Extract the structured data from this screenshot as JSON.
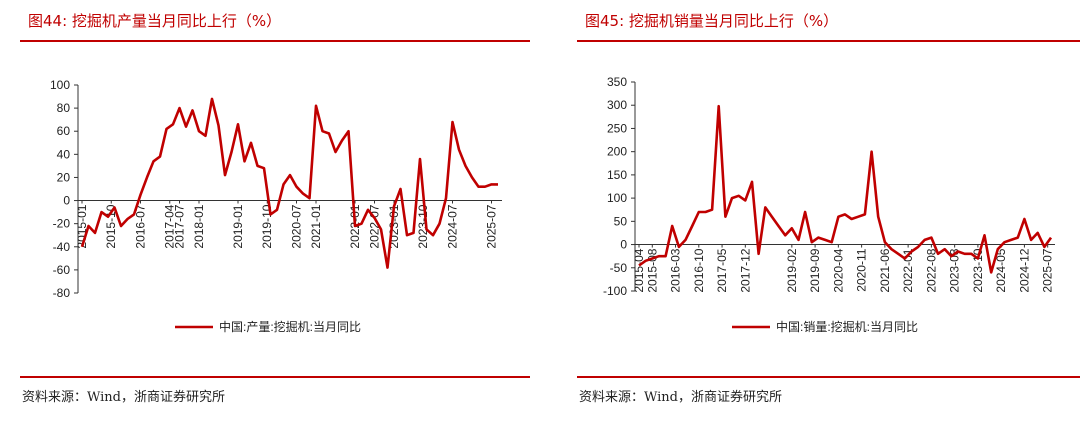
{
  "panels": [
    {
      "title": "图44:  挖掘机产量当月同比上行（%）",
      "source": "资料来源：Wind，浙商证券研究所"
    },
    {
      "title": "图45:  挖掘机销量当月同比上行（%）",
      "source": "资料来源：Wind，浙商证券研究所"
    }
  ],
  "chart_data": [
    {
      "type": "line",
      "title": "",
      "xlabel": "",
      "ylabel": "",
      "ylim": [
        -80,
        100
      ],
      "yticks": [
        100,
        80,
        60,
        40,
        20,
        0,
        -20,
        -40,
        -60,
        -80
      ],
      "xtick_labels": [
        "2015-01",
        "2015-10",
        "2016-07",
        "2017-04",
        "2017-07",
        "2018-01",
        "2019-01",
        "2019-10",
        "2020-07",
        "2021-01",
        "2022-01",
        "2022-07",
        "2023-01",
        "2023-10",
        "2024-07",
        "2025-07"
      ],
      "legend_position": "bottom",
      "grid": false,
      "line_color": "#c00000",
      "series": [
        {
          "name": "中国:产量:挖掘机:当月同比",
          "x": [
            "2015-01",
            "2015-03",
            "2015-05",
            "2015-07",
            "2015-09",
            "2015-11",
            "2016-01",
            "2016-03",
            "2016-05",
            "2016-07",
            "2016-09",
            "2016-11",
            "2017-01",
            "2017-03",
            "2017-05",
            "2017-07",
            "2017-09",
            "2017-11",
            "2018-01",
            "2018-03",
            "2018-05",
            "2018-07",
            "2018-09",
            "2018-11",
            "2019-01",
            "2019-03",
            "2019-05",
            "2019-07",
            "2019-09",
            "2019-11",
            "2020-01",
            "2020-03",
            "2020-05",
            "2020-07",
            "2020-09",
            "2020-11",
            "2021-01",
            "2021-03",
            "2021-05",
            "2021-07",
            "2021-09",
            "2021-11",
            "2022-01",
            "2022-03",
            "2022-05",
            "2022-07",
            "2022-09",
            "2022-11",
            "2023-01",
            "2023-03",
            "2023-05",
            "2023-07",
            "2023-09",
            "2023-11",
            "2024-01",
            "2024-03",
            "2024-05",
            "2024-07",
            "2024-09",
            "2024-11",
            "2025-01",
            "2025-03",
            "2025-05",
            "2025-07",
            "2025-09"
          ],
          "values": [
            -40,
            -22,
            -28,
            -10,
            -14,
            -6,
            -22,
            -16,
            -12,
            5,
            20,
            34,
            38,
            62,
            66,
            80,
            64,
            78,
            60,
            56,
            88,
            65,
            22,
            42,
            66,
            34,
            50,
            30,
            28,
            -12,
            -8,
            14,
            22,
            12,
            6,
            2,
            82,
            60,
            58,
            42,
            52,
            60,
            -22,
            -20,
            -8,
            -15,
            -25,
            -58,
            -5,
            10,
            -30,
            -28,
            36,
            -25,
            -30,
            -20,
            2,
            68,
            44,
            30,
            20,
            12,
            12,
            14,
            14
          ]
        }
      ]
    },
    {
      "type": "line",
      "title": "",
      "xlabel": "",
      "ylabel": "",
      "ylim": [
        -100,
        350
      ],
      "yticks": [
        350,
        300,
        250,
        200,
        150,
        100,
        50,
        0,
        -50,
        -100
      ],
      "xtick_labels": [
        "2015-04",
        "2015-08",
        "2016-03",
        "2016-10",
        "2017-05",
        "2017-12",
        "2019-02",
        "2019-09",
        "2020-04",
        "2020-11",
        "2021-06",
        "2022-01",
        "2022-08",
        "2023-03",
        "2023-10",
        "2024-05",
        "2024-12",
        "2025-07"
      ],
      "legend_position": "bottom",
      "grid": false,
      "line_color": "#c00000",
      "series": [
        {
          "name": "中国:销量:挖掘机:当月同比",
          "x": [
            "2015-04",
            "2015-06",
            "2015-08",
            "2015-10",
            "2015-12",
            "2016-02",
            "2016-04",
            "2016-06",
            "2016-08",
            "2016-10",
            "2016-12",
            "2017-02",
            "2017-04",
            "2017-06",
            "2017-08",
            "2017-10",
            "2017-12",
            "2018-02",
            "2018-04",
            "2018-06",
            "2018-08",
            "2018-10",
            "2018-12",
            "2019-02",
            "2019-04",
            "2019-06",
            "2019-08",
            "2019-10",
            "2019-12",
            "2020-02",
            "2020-04",
            "2020-06",
            "2020-08",
            "2020-10",
            "2020-12",
            "2021-02",
            "2021-04",
            "2021-06",
            "2021-08",
            "2021-10",
            "2021-12",
            "2022-02",
            "2022-04",
            "2022-06",
            "2022-08",
            "2022-10",
            "2022-12",
            "2023-02",
            "2023-04",
            "2023-06",
            "2023-08",
            "2023-10",
            "2023-12",
            "2024-02",
            "2024-04",
            "2024-06",
            "2024-08",
            "2024-10",
            "2024-12",
            "2025-02",
            "2025-04",
            "2025-06",
            "2025-08"
          ],
          "values": [
            -45,
            -35,
            -30,
            -25,
            -25,
            40,
            -5,
            10,
            40,
            70,
            70,
            75,
            298,
            60,
            100,
            105,
            95,
            135,
            -20,
            80,
            60,
            40,
            20,
            35,
            10,
            70,
            5,
            15,
            10,
            5,
            60,
            65,
            55,
            60,
            65,
            200,
            60,
            5,
            -10,
            -20,
            -30,
            -15,
            -5,
            10,
            15,
            -20,
            -10,
            -25,
            -15,
            -20,
            -20,
            -30,
            20,
            -60,
            -10,
            5,
            10,
            15,
            55,
            10,
            25,
            -5,
            15
          ]
        }
      ]
    }
  ]
}
